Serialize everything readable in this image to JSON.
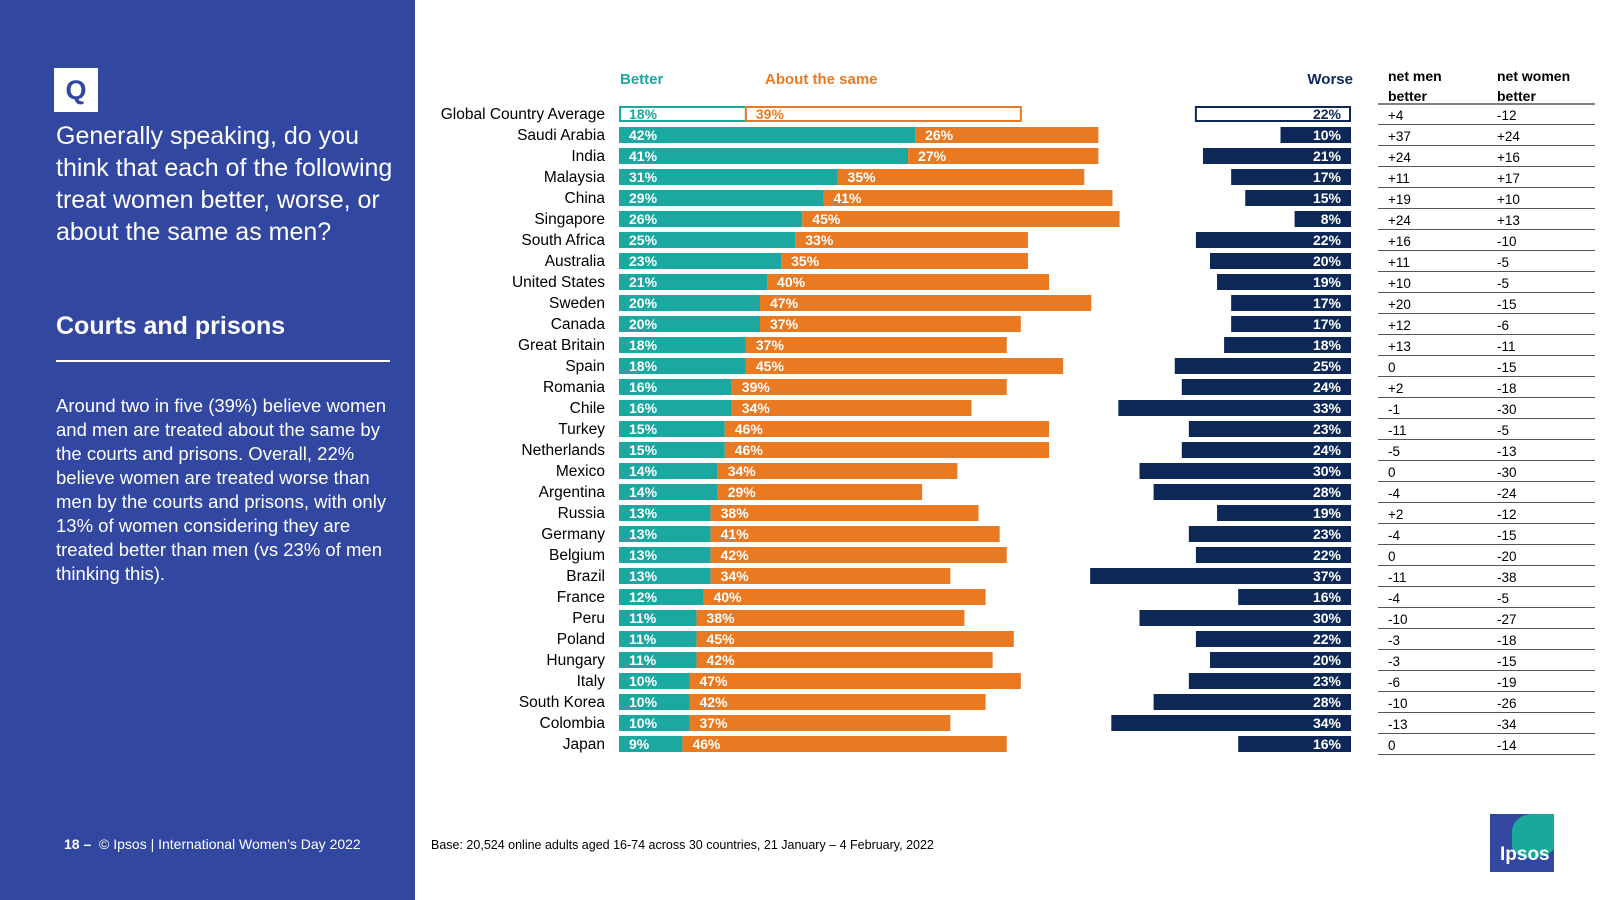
{
  "panel": {
    "q_label": "Q",
    "question": "Generally speaking, do you think that each of the following treat women better, worse, or about the same as men?",
    "section_title": "Courts and prisons",
    "summary": "Around two in five (39%) believe women and men are treated about the same by the courts and prisons. Overall, 22% believe women are treated worse than men by the courts and prisons, with only 13% of women considering they are treated better than men (vs 23% of men thinking this)."
  },
  "footer": {
    "page": "18 –",
    "copyright": "© Ipsos | International Women’s Day 2022",
    "base": "Base: 20,524 online adults aged 16-74 across 30 countries, 21 January – 4 February, 2022"
  },
  "logo": {
    "text": "Ipsos"
  },
  "colors": {
    "panel": "#3147a0",
    "better": "#1aa8a0",
    "same": "#ea7a22",
    "worse": "#0d2857"
  },
  "chart_data": {
    "type": "bar",
    "headers": {
      "better": "Better",
      "same": "About the same",
      "worse": "Worse",
      "net_men": "net men better",
      "net_women": "net women better"
    },
    "categories": [
      "Global Country Average",
      "Saudi Arabia",
      "India",
      "Malaysia",
      "China",
      "Singapore",
      "South Africa",
      "Australia",
      "United States",
      "Sweden",
      "Canada",
      "Great Britain",
      "Spain",
      "Romania",
      "Chile",
      "Turkey",
      "Netherlands",
      "Mexico",
      "Argentina",
      "Russia",
      "Germany",
      "Belgium",
      "Brazil",
      "France",
      "Peru",
      "Poland",
      "Hungary",
      "Italy",
      "South Korea",
      "Colombia",
      "Japan"
    ],
    "series": [
      {
        "name": "Better",
        "values": [
          18,
          42,
          41,
          31,
          29,
          26,
          25,
          23,
          21,
          20,
          20,
          18,
          18,
          16,
          16,
          15,
          15,
          14,
          14,
          13,
          13,
          13,
          13,
          12,
          11,
          11,
          11,
          10,
          10,
          10,
          9
        ]
      },
      {
        "name": "About the same",
        "values": [
          39,
          26,
          27,
          35,
          41,
          45,
          33,
          35,
          40,
          47,
          37,
          37,
          45,
          39,
          34,
          46,
          46,
          34,
          29,
          38,
          41,
          42,
          34,
          40,
          38,
          45,
          42,
          47,
          42,
          37,
          46
        ]
      },
      {
        "name": "Worse",
        "values": [
          22,
          10,
          21,
          17,
          15,
          8,
          22,
          20,
          19,
          17,
          17,
          18,
          25,
          24,
          33,
          23,
          24,
          30,
          28,
          19,
          23,
          22,
          37,
          16,
          30,
          22,
          20,
          23,
          28,
          34,
          16
        ]
      }
    ],
    "net_men_better": [
      "+4",
      "+37",
      "+24",
      "+11",
      "+19",
      "+24",
      "+16",
      "+11",
      "+10",
      "+20",
      "+12",
      "+13",
      "0",
      "+2",
      "-1",
      "-11",
      "-5",
      "0",
      "-4",
      "+2",
      "-4",
      "0",
      "-11",
      "-4",
      "-10",
      "-3",
      "-3",
      "-6",
      "-10",
      "-13",
      "0"
    ],
    "net_women_better": [
      "-12",
      "+24",
      "+16",
      "+17",
      "+10",
      "+13",
      "-10",
      "-5",
      "-5",
      "-15",
      "-6",
      "-11",
      "-15",
      "-18",
      "-30",
      "-5",
      "-13",
      "-30",
      "-24",
      "-12",
      "-15",
      "-20",
      "-38",
      "-5",
      "-27",
      "-18",
      "-15",
      "-19",
      "-26",
      "-34",
      "-14"
    ],
    "unit": "%"
  }
}
